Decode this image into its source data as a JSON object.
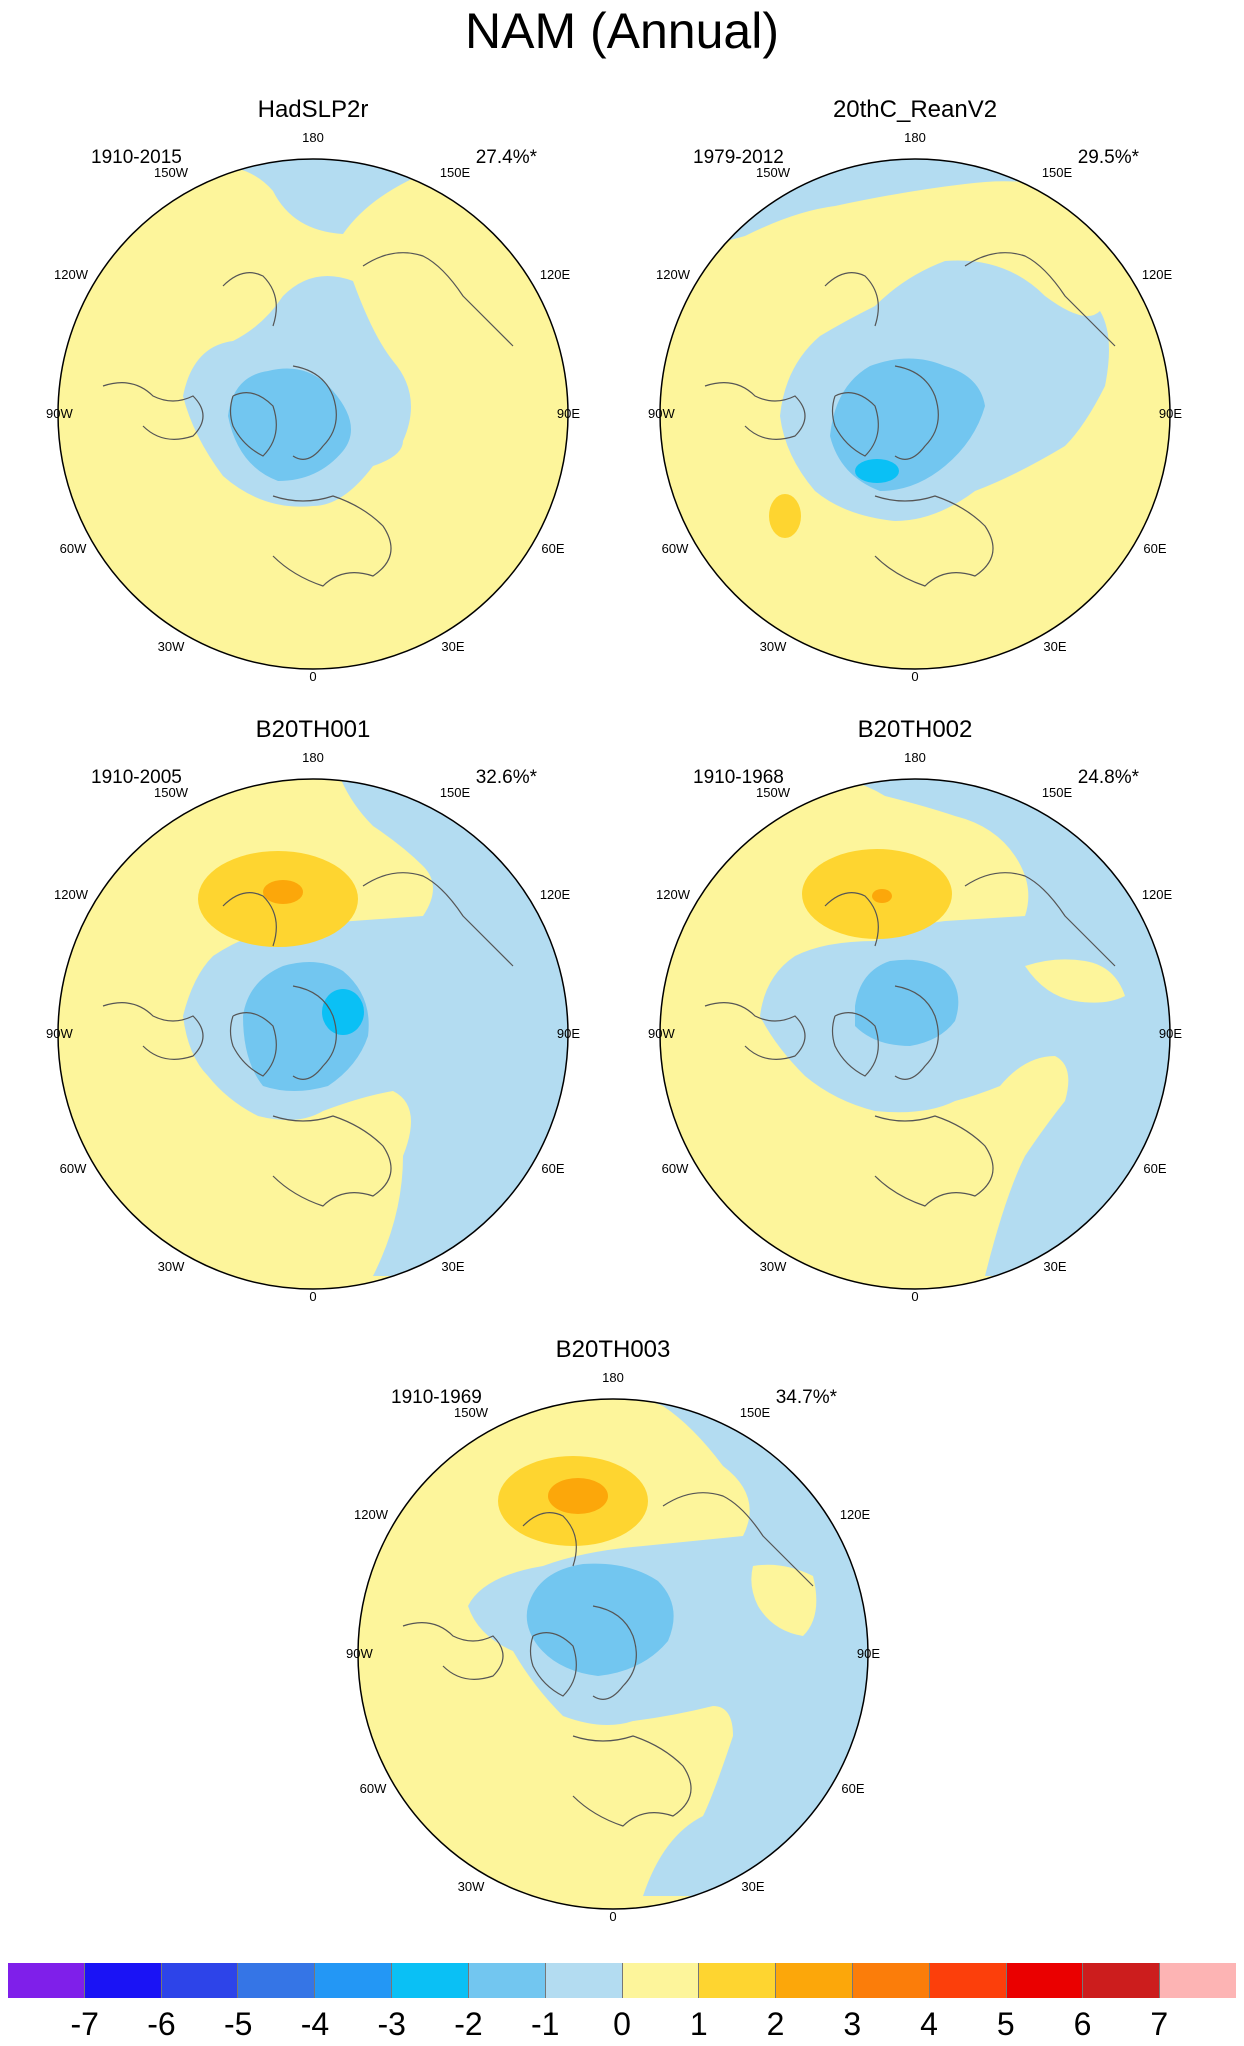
{
  "title": "NAM (Annual)",
  "lon_labels": [
    "180",
    "150E",
    "120E",
    "90E",
    "60E",
    "30E",
    "0",
    "30W",
    "60W",
    "90W",
    "120W",
    "150W"
  ],
  "panels": [
    {
      "name": "HadSLP2r",
      "period": "1910-2015",
      "variance": "27.4%*"
    },
    {
      "name": "20thC_ReanV2",
      "period": "1979-2012",
      "variance": "29.5%*"
    },
    {
      "name": "B20TH001",
      "period": "1910-2005",
      "variance": "32.6%*"
    },
    {
      "name": "B20TH002",
      "period": "1910-1968",
      "variance": "24.8%*"
    },
    {
      "name": "B20TH003",
      "period": "1910-1969",
      "variance": "34.7%*"
    }
  ],
  "colorbar": {
    "colors": [
      "#7f1fea",
      "#1a13f5",
      "#2d44e9",
      "#3575e6",
      "#2397f5",
      "#0ac0f5",
      "#72c6f0",
      "#b3dcf1",
      "#fdf59b",
      "#fed530",
      "#fca70a",
      "#fb7d0a",
      "#fc3f0b",
      "#ea0000",
      "#cc1d1d",
      "#fdb4b4"
    ],
    "ticks": [
      "-7",
      "-6",
      "-5",
      "-4",
      "-3",
      "-2",
      "-1",
      "0",
      "1",
      "2",
      "3",
      "4",
      "5",
      "6",
      "7"
    ]
  },
  "palette": {
    "pos1": "#fdf59b",
    "pos2": "#fed530",
    "pos3": "#fca70a",
    "neg1": "#b3dcf1",
    "neg2": "#72c6f0",
    "neg3": "#0ac0f5",
    "coast": "#555555"
  }
}
